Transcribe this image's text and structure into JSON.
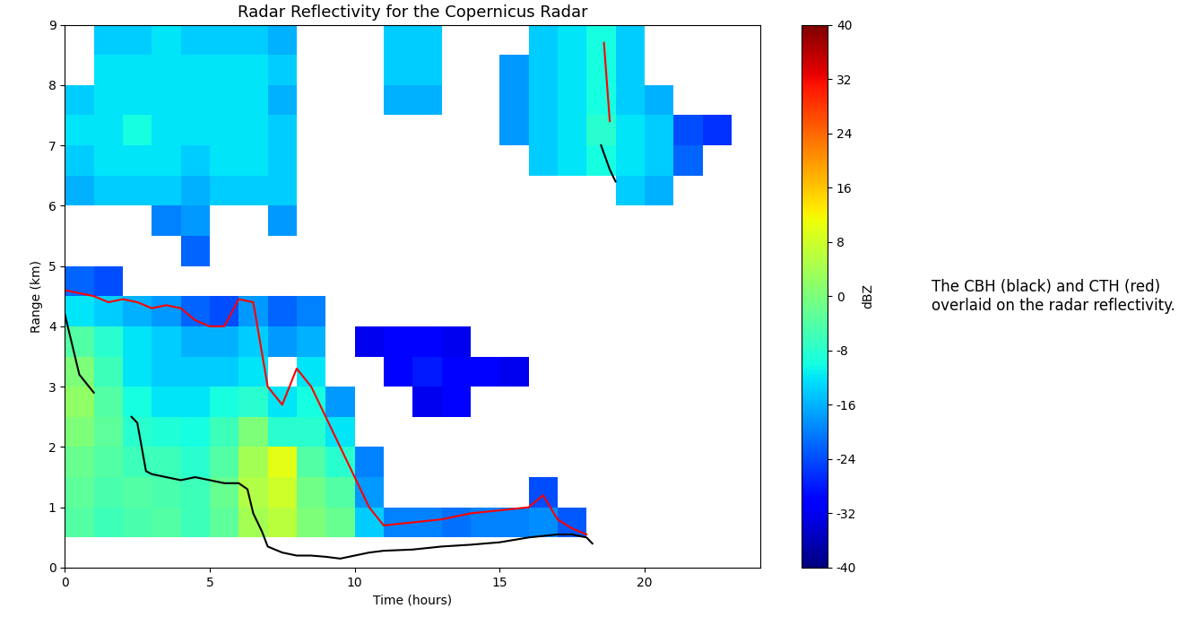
{
  "chart_data": {
    "type": "heatmap",
    "title": "Radar Reflectivity for the Copernicus Radar",
    "x_label": "Time (hours)",
    "y_label": "Range (km)",
    "xlim": [
      0,
      24
    ],
    "ylim": [
      0,
      9
    ],
    "xticks": [
      0,
      5,
      10,
      15,
      20
    ],
    "yticks": [
      0,
      1,
      2,
      3,
      4,
      5,
      6,
      7,
      8,
      9
    ],
    "colorbar_label": "dBZ",
    "colorbar_range": [
      -40,
      40
    ],
    "colorbar_ticks": [
      -40,
      -32,
      -24,
      -16,
      -8,
      0,
      8,
      16,
      24,
      32,
      40
    ],
    "annotation": "The CBH (black) and CTH (red) overlaid on the radar reflectivity.",
    "cells": {
      "x_edges": [
        0,
        1,
        2,
        3,
        4,
        5,
        6,
        7,
        8,
        9,
        10,
        11,
        12,
        13,
        14,
        15,
        16,
        17,
        18,
        19,
        20,
        21,
        22,
        23,
        24
      ],
      "y_edges": [
        0,
        0.5,
        1,
        1.5,
        2,
        2.5,
        3,
        3.5,
        4,
        4.5,
        5,
        5.5,
        6,
        6.5,
        7,
        7.5,
        8,
        8.5,
        9
      ],
      "values": [
        [
          null,
          null,
          null,
          null,
          null,
          null,
          null,
          null,
          null,
          null,
          null,
          null,
          null,
          null,
          null,
          null,
          null,
          null,
          null,
          null,
          null,
          null,
          null,
          null
        ],
        [
          -4,
          -6,
          -5,
          -4,
          -6,
          -3,
          4,
          6,
          0,
          -2,
          -14,
          -20,
          -20,
          -21,
          -20,
          -20,
          -19,
          -23,
          null,
          null,
          null,
          null,
          null,
          null
        ],
        [
          -3,
          -5,
          -4,
          -5,
          -6,
          -2,
          5,
          8,
          -1,
          -4,
          -18,
          null,
          null,
          null,
          null,
          null,
          -24,
          null,
          null,
          null,
          null,
          null,
          null,
          null
        ],
        [
          -2,
          -4,
          -6,
          -6,
          -8,
          -4,
          4,
          10,
          -4,
          -8,
          -20,
          null,
          null,
          null,
          null,
          null,
          null,
          null,
          null,
          null,
          null,
          null,
          null,
          null
        ],
        [
          0,
          -3,
          -8,
          -9,
          -10,
          -6,
          0,
          -8,
          -8,
          -12,
          null,
          null,
          null,
          null,
          null,
          null,
          null,
          null,
          null,
          null,
          null,
          null,
          null,
          null
        ],
        [
          2,
          -4,
          -10,
          -12,
          -12,
          -10,
          -8,
          -12,
          -10,
          -18,
          null,
          null,
          -32,
          -30,
          null,
          null,
          null,
          null,
          null,
          null,
          null,
          null,
          null,
          null
        ],
        [
          0,
          -6,
          -12,
          -14,
          -14,
          -14,
          -12,
          null,
          -12,
          null,
          null,
          -30,
          -28,
          -30,
          -30,
          -32,
          null,
          null,
          null,
          null,
          null,
          null,
          null,
          null
        ],
        [
          -4,
          -8,
          -12,
          -14,
          -16,
          -16,
          -14,
          -18,
          -16,
          null,
          -32,
          -30,
          -30,
          -32,
          null,
          null,
          null,
          null,
          null,
          null,
          null,
          null,
          null,
          null
        ],
        [
          -12,
          -14,
          -16,
          -18,
          -22,
          -24,
          -18,
          -22,
          -20,
          null,
          null,
          null,
          null,
          null,
          null,
          null,
          null,
          null,
          null,
          null,
          null,
          null,
          null,
          null
        ],
        [
          -22,
          -24,
          null,
          null,
          null,
          null,
          null,
          null,
          null,
          null,
          null,
          null,
          null,
          null,
          null,
          null,
          null,
          null,
          null,
          null,
          null,
          null,
          null,
          null
        ],
        [
          null,
          null,
          null,
          null,
          -22,
          null,
          null,
          null,
          null,
          null,
          null,
          null,
          null,
          null,
          null,
          null,
          null,
          null,
          null,
          null,
          null,
          null,
          null,
          null
        ],
        [
          null,
          null,
          null,
          -20,
          -18,
          null,
          null,
          -18,
          null,
          null,
          null,
          null,
          null,
          null,
          null,
          null,
          null,
          null,
          null,
          null,
          null,
          null,
          null,
          null
        ],
        [
          -16,
          -14,
          -14,
          -14,
          -16,
          -14,
          -14,
          -14,
          null,
          null,
          null,
          null,
          null,
          null,
          null,
          null,
          null,
          null,
          null,
          -14,
          -16,
          null,
          null,
          null
        ],
        [
          -14,
          -12,
          -12,
          -12,
          -14,
          -12,
          -12,
          -14,
          null,
          null,
          null,
          null,
          null,
          null,
          null,
          null,
          -14,
          -12,
          -10,
          -12,
          -14,
          -22,
          null,
          null
        ],
        [
          -12,
          -12,
          -10,
          -12,
          -12,
          -12,
          -12,
          -14,
          null,
          null,
          null,
          null,
          null,
          null,
          null,
          -18,
          -14,
          -12,
          -8,
          -12,
          -14,
          -24,
          -26,
          null
        ],
        [
          -14,
          -12,
          -12,
          -12,
          -12,
          -12,
          -12,
          -16,
          null,
          null,
          null,
          -16,
          -16,
          null,
          null,
          -18,
          -14,
          -12,
          -10,
          -14,
          -16,
          null,
          null,
          null
        ],
        [
          null,
          -12,
          -12,
          -12,
          -12,
          -12,
          -12,
          -14,
          null,
          null,
          null,
          -14,
          -14,
          null,
          null,
          -18,
          -14,
          -12,
          -10,
          -14,
          null,
          null,
          null,
          null
        ],
        [
          null,
          -14,
          -14,
          -12,
          -14,
          -14,
          -14,
          -16,
          null,
          null,
          null,
          -14,
          -14,
          null,
          null,
          null,
          -14,
          -12,
          -10,
          -14,
          null,
          null,
          null,
          null
        ]
      ]
    },
    "series": [
      {
        "type": "line",
        "color": "#000000",
        "x": [
          0,
          0.5,
          1,
          1.5,
          2,
          2.3,
          2.5,
          2.8,
          3,
          3.5,
          4,
          4.5,
          5,
          5.5,
          6,
          6.3,
          6.5,
          6.8,
          7,
          7.5,
          8,
          8.5,
          9,
          9.5,
          10,
          10.5,
          11,
          12,
          13,
          14,
          15,
          16,
          17,
          17.5,
          18,
          18.2,
          18.3,
          18.5,
          18.8,
          19
        ],
        "values": [
          4.2,
          3.2,
          2.9,
          null,
          null,
          2.5,
          2.4,
          1.6,
          1.55,
          1.5,
          1.45,
          1.5,
          1.45,
          1.4,
          1.4,
          1.3,
          0.9,
          0.6,
          0.35,
          0.25,
          0.2,
          0.2,
          0.18,
          0.15,
          0.2,
          0.25,
          0.28,
          0.3,
          0.35,
          0.38,
          0.42,
          0.5,
          0.55,
          0.55,
          0.5,
          0.4,
          null,
          7.0,
          6.6,
          6.4
        ]
      },
      {
        "type": "line",
        "color": "#ff0000",
        "x": [
          0,
          0.5,
          1,
          1.5,
          2,
          2.5,
          3,
          3.5,
          4,
          4.5,
          5,
          5.5,
          6,
          6.5,
          7,
          7.5,
          8,
          8.5,
          9,
          9.5,
          10,
          10.5,
          11,
          12,
          13,
          14,
          15,
          16,
          16.5,
          17,
          17.5,
          18,
          18.3,
          18.6,
          18.8
        ],
        "values": [
          4.6,
          4.55,
          4.5,
          4.4,
          4.45,
          4.4,
          4.3,
          4.35,
          4.3,
          4.1,
          4.0,
          4.0,
          4.45,
          4.4,
          3.0,
          2.7,
          3.3,
          3.0,
          2.5,
          2.0,
          1.5,
          1.0,
          0.7,
          0.75,
          0.8,
          0.9,
          0.95,
          1.0,
          1.2,
          0.8,
          0.65,
          0.55,
          null,
          8.7,
          7.4
        ]
      }
    ]
  }
}
